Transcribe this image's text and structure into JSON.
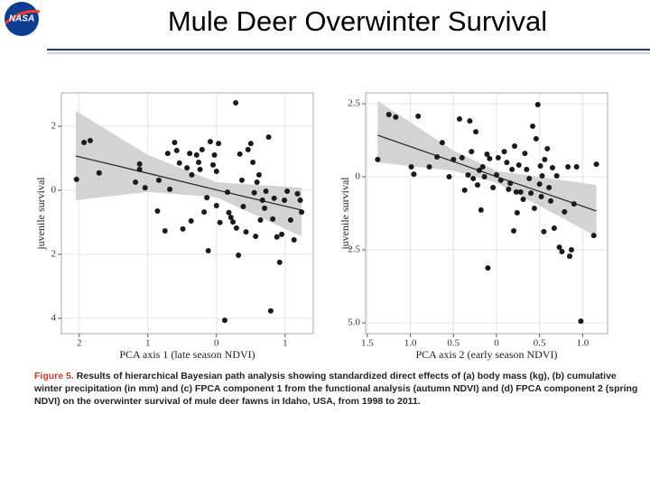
{
  "slide_title": "Mule Deer Overwinter Survival",
  "logo_text": "NASA",
  "chart_data": [
    {
      "type": "scatter",
      "x_label": "PCA axis 1 (late season NDVI)",
      "y_label": "juvenile survival",
      "xlim": [
        -2.26,
        1.41
      ],
      "ylim": [
        -4.48,
        3.04
      ],
      "xticks": [
        {
          "value": -2,
          "label": "2"
        },
        {
          "value": -1,
          "label": "1"
        },
        0,
        1
      ],
      "yticks": [
        2,
        0,
        {
          "value": -2,
          "label": "2"
        },
        {
          "value": -4,
          "label": "4"
        }
      ],
      "grid": true,
      "color": "#1a1a1a",
      "band_color": "#d3d3d3",
      "points": {
        "x": [
          -2.04,
          -1.93,
          -1.84,
          -1.71,
          -1.18,
          -1.12,
          -1.12,
          -1.04,
          -0.86,
          -0.84,
          -0.75,
          -0.71,
          -0.68,
          -0.61,
          -0.58,
          -0.54,
          -0.49,
          -0.43,
          -0.39,
          -0.37,
          -0.36,
          -0.29,
          -0.26,
          -0.24,
          -0.21,
          -0.18,
          -0.14,
          -0.12,
          -0.09,
          -0.05,
          -0.03,
          0,
          0,
          0.03,
          0.05,
          0.12,
          0.16,
          0.18,
          0.21,
          0.24,
          0.28,
          0.29,
          0.32,
          0.34,
          0.37,
          0.39,
          0.43,
          0.46,
          0.5,
          0.53,
          0.55,
          0.57,
          0.59,
          0.62,
          0.64,
          0.67,
          0.7,
          0.72,
          0.76,
          0.79,
          0.82,
          0.84,
          0.88,
          0.92,
          0.95,
          0.99,
          1.03,
          1.08,
          1.13,
          1.18,
          1.22,
          1.24
        ],
        "y": [
          0.34,
          1.49,
          1.55,
          0.54,
          0.25,
          0.82,
          0.65,
          0.08,
          -0.65,
          0.31,
          -1.27,
          1.15,
          0.03,
          1.49,
          1.24,
          0.85,
          -1.21,
          0.7,
          1.15,
          -0.96,
          0.48,
          1.1,
          0.87,
          0.65,
          1.27,
          -0.68,
          -0.23,
          -1.89,
          1.52,
          0.79,
          1.1,
          0.59,
          -0.48,
          1.46,
          -1.01,
          -4.06,
          -0.06,
          -0.7,
          -0.85,
          -0.99,
          2.73,
          -1.18,
          -2.03,
          1.13,
          0.31,
          -0.51,
          -1.3,
          1.27,
          1.46,
          0.87,
          -0.08,
          -1.44,
          0.25,
          0.48,
          -0.93,
          -0.31,
          -0.56,
          -0.03,
          1.66,
          -3.77,
          -0.9,
          -0.25,
          -1.46,
          -2.25,
          -1.38,
          -0.31,
          -0.03,
          -0.93,
          -1.55,
          -0.11,
          -0.31,
          -0.68
        ]
      },
      "fit": {
        "x": [
          -2.05,
          -1,
          0,
          1.24
        ],
        "y": [
          1.07,
          0.53,
          0.01,
          -0.62
        ],
        "upper": [
          2.48,
          1.1,
          0.25,
          0.08
        ],
        "lower": [
          -0.31,
          -0.05,
          -0.22,
          -1.44
        ]
      }
    },
    {
      "type": "scatter",
      "x_label": "PCA axis 2 (early season NDVI)",
      "y_label": "juvenile survival",
      "xlim": [
        -1.52,
        1.29
      ],
      "ylim": [
        -5.37,
        2.87
      ],
      "xticks": [
        {
          "value": -1.5,
          "label": "1.5"
        },
        {
          "value": -1,
          "label": "1.0"
        },
        {
          "value": -0.5,
          "label": "0.5"
        },
        0,
        0.5,
        {
          "value": 1,
          "label": "1.0"
        }
      ],
      "yticks": [
        2.5,
        0,
        {
          "value": -2.5,
          "label": "2.5"
        },
        {
          "value": -5,
          "label": "5.0"
        }
      ],
      "grid": true,
      "color": "#1a1a1a",
      "band_color": "#d3d3d3",
      "points": {
        "x": [
          -1.38,
          -1.25,
          -1.17,
          -0.99,
          -0.96,
          -0.91,
          -0.78,
          -0.69,
          -0.63,
          -0.55,
          -0.5,
          -0.43,
          -0.4,
          -0.37,
          -0.33,
          -0.31,
          -0.29,
          -0.27,
          -0.24,
          -0.22,
          -0.2,
          -0.18,
          -0.16,
          -0.14,
          -0.11,
          -0.1,
          -0.08,
          -0.04,
          0,
          0.02,
          0.05,
          0.09,
          0.12,
          0.14,
          0.16,
          0.18,
          0.2,
          0.21,
          0.23,
          0.24,
          0.26,
          0.28,
          0.31,
          0.33,
          0.35,
          0.38,
          0.4,
          0.42,
          0.44,
          0.46,
          0.48,
          0.5,
          0.51,
          0.52,
          0.53,
          0.55,
          0.56,
          0.59,
          0.61,
          0.63,
          0.65,
          0.67,
          0.7,
          0.73,
          0.76,
          0.79,
          0.83,
          0.85,
          0.87,
          0.9,
          0.93,
          0.98,
          1.13,
          1.16
        ],
        "y": [
          0.59,
          2.13,
          2.04,
          0.34,
          0.09,
          2.07,
          0.34,
          0.68,
          1.17,
          0,
          0.59,
          1.98,
          0.65,
          -0.46,
          0.06,
          1.91,
          0.86,
          -0.06,
          1.54,
          -0.28,
          0.22,
          -1.14,
          0.34,
          0,
          0.77,
          -3.12,
          0.62,
          -0.37,
          0.06,
          0.65,
          -0.12,
          0.86,
          0.49,
          -0.43,
          -0.22,
          0.25,
          -1.85,
          1.05,
          -0.52,
          -1.23,
          0.4,
          -0.52,
          -0.77,
          0.8,
          0.25,
          -0.06,
          -0.56,
          1.73,
          -1.08,
          1.3,
          2.47,
          -0.25,
          0.37,
          -0.68,
          0.03,
          -1.88,
          0.59,
          0.96,
          -0.37,
          -0.83,
          0.31,
          -1.76,
          0.03,
          -2.41,
          -2.56,
          -1.2,
          0.34,
          -2.72,
          -2.5,
          -0.93,
          0.34,
          -4.94,
          -2.01,
          0.43
        ]
      },
      "fit": {
        "x": [
          -1.38,
          -0.5,
          0,
          1.16
        ],
        "y": [
          1.42,
          0.52,
          0,
          -1.17
        ],
        "upper": [
          2.59,
          0.9,
          0.2,
          -0.28
        ],
        "lower": [
          0.49,
          0.2,
          -0.2,
          -2.04
        ]
      }
    }
  ],
  "caption": {
    "label": "Figure 5.",
    "text": "Results of hierarchical Bayesian path analysis showing standardized direct effects of (a) body mass (kg), (b) cumulative winter precipitation (in mm) and (c) FPCA component 1 from the functional analysis (autumn NDVI) and (d) FPCA component 2 (spring NDVI) on the overwinter survival of mule deer fawns in Idaho, USA, from 1998 to 2011."
  }
}
